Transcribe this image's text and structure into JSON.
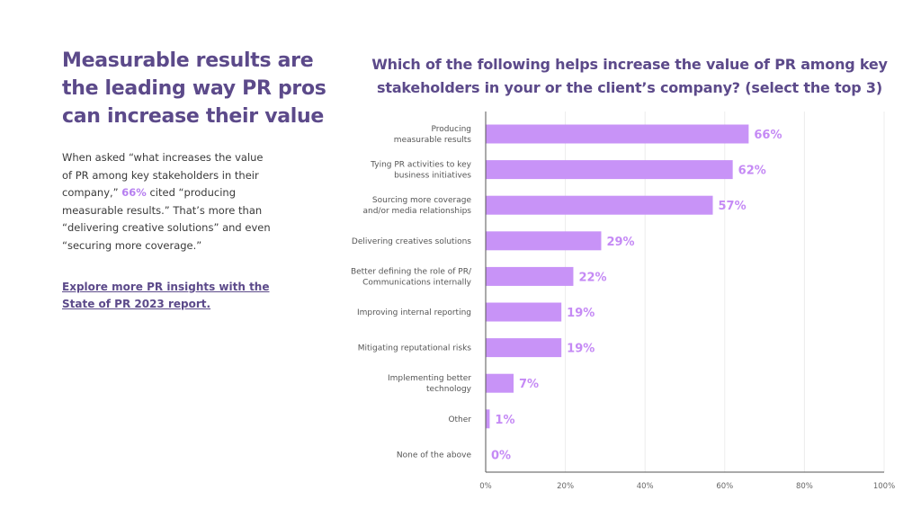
{
  "headline": "Measurable results are the leading way PR pros can increase their value",
  "body": {
    "part1": "When asked “what increases the value of PR among key stakeholders in their company,” ",
    "highlight": "66%",
    "part2": " cited “producing measurable results.” That’s more than “delivering creative solutions” and even “securing more coverage.”"
  },
  "cta": "Explore more PR insights with the State of PR 2023 report.",
  "colors": {
    "accent": "#5c4a8a",
    "bar": "#c893f7",
    "value_label": "#c58af5"
  },
  "chart_data": {
    "type": "bar",
    "orientation": "horizontal",
    "title": "Which of the following helps increase the value of PR among key stakeholders in your or the client’s company? (select the top 3)",
    "categories": [
      [
        "Producing",
        "measurable results"
      ],
      [
        "Tying PR activities to key",
        "business initiatives"
      ],
      [
        "Sourcing more coverage",
        "and/or media relationships"
      ],
      [
        "Delivering creatives solutions"
      ],
      [
        "Better defining the role of PR/",
        "Communications internally"
      ],
      [
        "Improving internal reporting"
      ],
      [
        "Mitigating reputational risks"
      ],
      [
        "Implementing better",
        "technology"
      ],
      [
        "Other"
      ],
      [
        "None of the above"
      ]
    ],
    "values": [
      66,
      62,
      57,
      29,
      22,
      19,
      19,
      7,
      1,
      0
    ],
    "value_labels": [
      "66%",
      "62%",
      "57%",
      "29%",
      "22%",
      "19%",
      "19%",
      "7%",
      "1%",
      "0%"
    ],
    "xlim": [
      0,
      100
    ],
    "xticks": [
      0,
      20,
      40,
      60,
      80,
      100
    ],
    "xtick_labels": [
      "0%",
      "20%",
      "40%",
      "60%",
      "80%",
      "100%"
    ],
    "grid": true
  }
}
